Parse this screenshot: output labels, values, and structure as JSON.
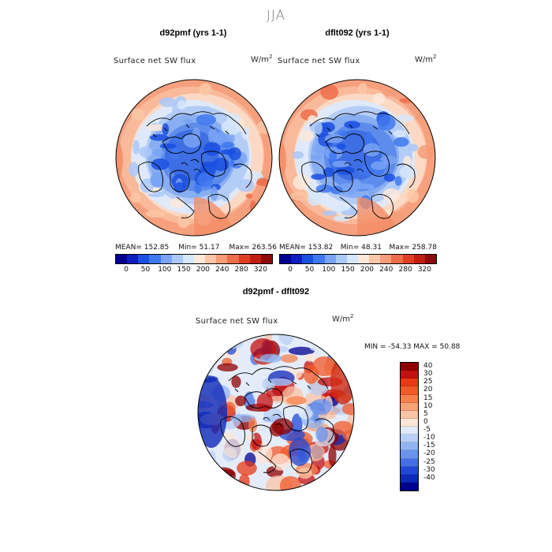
{
  "season": "JJA",
  "panel_left": {
    "title": "d92pmf (yrs 1-1)",
    "variable": "Surface net SW flux",
    "units_base": "W/m",
    "units_exp": "2",
    "mean_label": "MEAN=",
    "mean": "152.85",
    "min_label": "Min=",
    "min": "51.17",
    "max_label": "Max=",
    "max": "263.56"
  },
  "panel_right": {
    "title": "dflt092 (yrs 1-1)",
    "variable": "Surface net SW flux",
    "units_base": "W/m",
    "units_exp": "2",
    "mean_label": "MEAN=",
    "mean": "153.82",
    "min_label": "Min=",
    "min": "48.31",
    "max_label": "Max=",
    "max": "258.78"
  },
  "diff_panel": {
    "title": "d92pmf - dflt092",
    "variable": "Surface net SW flux",
    "units_base": "W/m",
    "units_exp": "2",
    "minmax": "MIN = -54.33 MAX =  50.88"
  },
  "colorbar_abs": {
    "ticks": [
      "0",
      "50",
      "100",
      "150",
      "200",
      "240",
      "280",
      "320"
    ],
    "colors": [
      "#00008f",
      "#0f1fbf",
      "#1a4fe0",
      "#3f78f0",
      "#7aa3f5",
      "#aac8f8",
      "#d6e6fb",
      "#fde9da",
      "#fbc7a6",
      "#f59c78",
      "#ee6d4a",
      "#de3f24",
      "#c11e12",
      "#8f0a0a"
    ]
  },
  "colorbar_diff": {
    "ticks": [
      "40",
      "30",
      "25",
      "20",
      "15",
      "10",
      "5",
      "0",
      "-5",
      "-10",
      "-15",
      "-20",
      "-25",
      "-30",
      "-40"
    ],
    "colors": [
      "#8f0000",
      "#c41010",
      "#e83a14",
      "#f25a28",
      "#f7804c",
      "#f9a178",
      "#fbc4a6",
      "#fde6d6",
      "#dfe9f9",
      "#b9d0f6",
      "#92b4f2",
      "#6b93ec",
      "#4470e6",
      "#1f48d8",
      "#0e28b8",
      "#00008f"
    ]
  },
  "maps": {
    "left_field": "absolute",
    "right_field": "absolute",
    "diff_field": "difference"
  }
}
